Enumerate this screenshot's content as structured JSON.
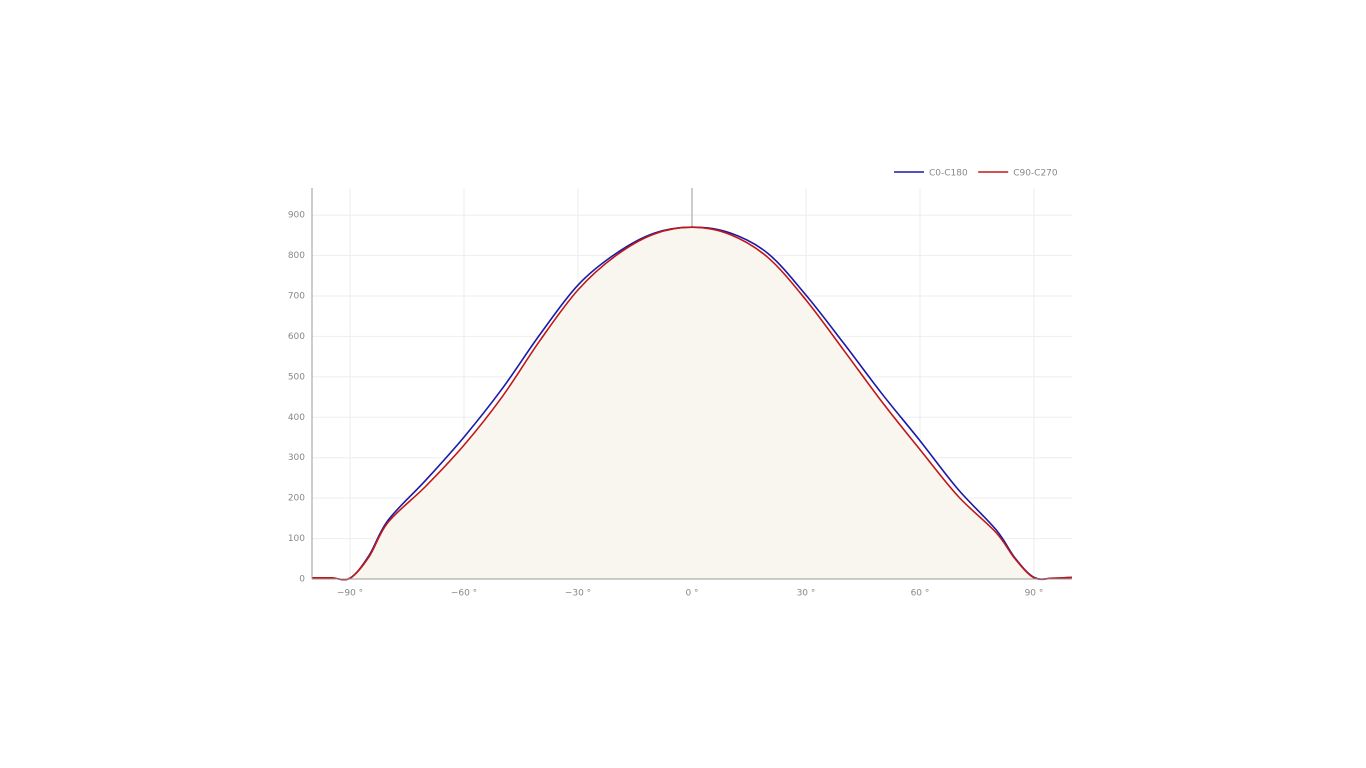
{
  "chart_data": {
    "type": "line",
    "x": [
      -100,
      -95,
      -90,
      -85,
      -80,
      -70,
      -60,
      -50,
      -40,
      -30,
      -20,
      -10,
      0,
      10,
      20,
      30,
      40,
      50,
      60,
      70,
      80,
      85,
      90,
      95,
      100
    ],
    "series": [
      {
        "name": "C0-C180",
        "color": "#1a1aa8",
        "values": [
          3,
          3,
          2,
          58,
          145,
          245,
          351,
          470,
          605,
          727,
          805,
          855,
          870,
          856,
          805,
          702,
          582,
          458,
          342,
          222,
          122,
          52,
          4,
          2,
          4
        ]
      },
      {
        "name": "C90-C270",
        "color": "#c01818",
        "fill": "#f9f6ef",
        "values": [
          3,
          3,
          2,
          55,
          140,
          230,
          331,
          450,
          590,
          715,
          800,
          853,
          870,
          852,
          795,
          690,
          565,
          438,
          320,
          205,
          115,
          50,
          3,
          2,
          4
        ]
      }
    ],
    "xlim": [
      -100,
      100
    ],
    "ylim": [
      0,
      967
    ],
    "xticks": [
      {
        "value": -90,
        "label": "−90 °"
      },
      {
        "value": -60,
        "label": "−60 °"
      },
      {
        "value": -30,
        "label": "−30 °"
      },
      {
        "value": 0,
        "label": "0 °"
      },
      {
        "value": 30,
        "label": "30 °"
      },
      {
        "value": 60,
        "label": "60 °"
      },
      {
        "value": 90,
        "label": "90 °"
      }
    ],
    "yticks": [
      0,
      100,
      200,
      300,
      400,
      500,
      600,
      700,
      800,
      900
    ],
    "grid": true,
    "legend": "top-right"
  }
}
